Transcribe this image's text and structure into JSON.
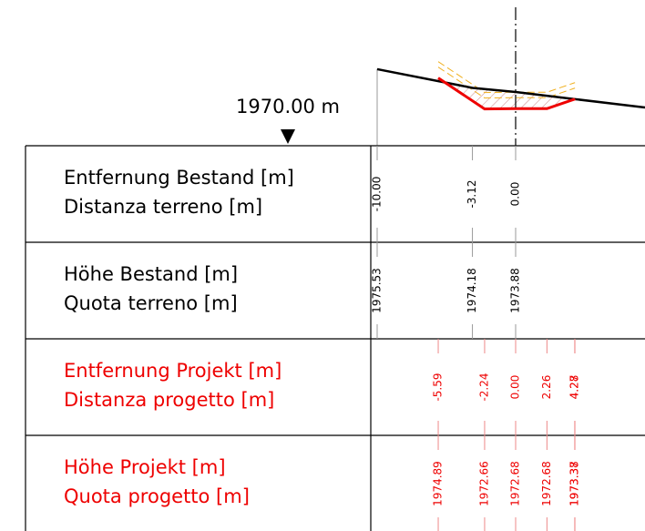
{
  "datum": "1970.00 m",
  "rows": [
    {
      "label": [
        "Entfernung Bestand [m]",
        "Distanza terreno [m]"
      ],
      "values": [
        "-10.00",
        "-3.12",
        "0.00"
      ]
    },
    {
      "label": [
        "Höhe Bestand [m]",
        "Quota terreno [m]"
      ],
      "values": [
        "1975.53",
        "1974.18",
        "1973.88"
      ]
    },
    {
      "label": [
        "Entfernung Projekt [m]",
        "Distanza progetto [m]"
      ],
      "values": [
        "-5.59",
        "-2.24",
        "0.00",
        "2.26",
        "4.27",
        "4.28"
      ]
    },
    {
      "label": [
        "Höhe Projekt [m]",
        "Quota progetto [m]"
      ],
      "values": [
        "1974.89",
        "1972.66",
        "1972.68",
        "1972.68",
        "1973.37",
        "1973.38"
      ]
    }
  ]
}
